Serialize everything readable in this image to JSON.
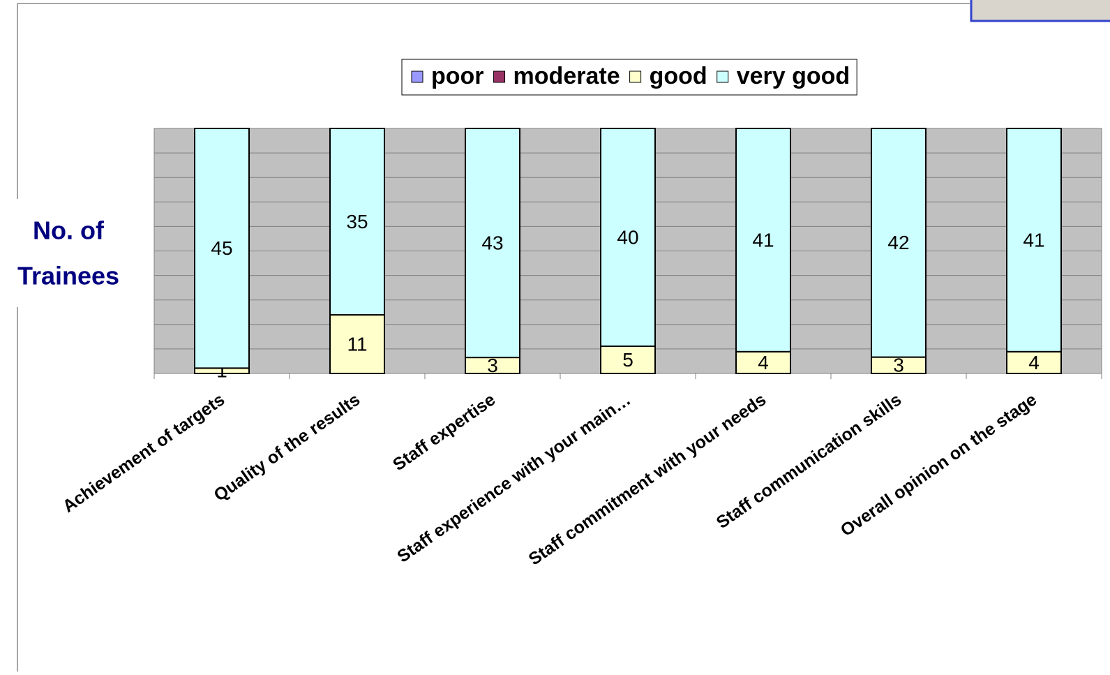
{
  "chart_data": {
    "type": "bar",
    "stacking": "percent",
    "ylabel": [
      "No. of",
      "Trainees"
    ],
    "categories": [
      "Achievement of targets",
      "Quality of the results",
      "Staff expertise",
      "Staff experience with your main…",
      "Staff commitment with your needs",
      "Staff communication skills",
      "Overall opinion on the stage"
    ],
    "series": [
      {
        "name": "poor",
        "color": "#9999ff",
        "values": [
          0,
          0,
          0,
          0,
          0,
          0,
          0
        ]
      },
      {
        "name": "moderate",
        "color": "#993366",
        "values": [
          0,
          0,
          0,
          0,
          0,
          0,
          0
        ]
      },
      {
        "name": "good",
        "color": "#ffffcc",
        "values": [
          1,
          11,
          3,
          5,
          4,
          3,
          4
        ]
      },
      {
        "name": "very good",
        "color": "#ccffff",
        "values": [
          45,
          35,
          43,
          40,
          41,
          42,
          41
        ]
      }
    ],
    "ylim": [
      0,
      100
    ],
    "yticks": [
      0,
      10,
      20,
      30,
      40,
      50,
      60,
      70,
      80,
      90,
      100
    ],
    "grid": true,
    "legend": "top"
  }
}
